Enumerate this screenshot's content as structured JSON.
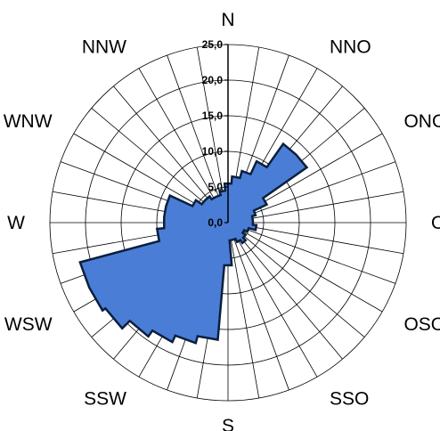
{
  "chart_data": {
    "type": "radar",
    "title": "",
    "directions": [
      "N",
      "NNO",
      "ONO",
      "O",
      "OSO",
      "SSO",
      "S",
      "SSW",
      "WSW",
      "W",
      "WNW",
      "NNW"
    ],
    "radial_ticks": [
      "0,0",
      "5,0",
      "10,0",
      "15,0",
      "20,0",
      "25,0"
    ],
    "rlim": [
      0,
      25
    ],
    "angular_bins": 36,
    "grid": true,
    "values": [
      5.5,
      6.5,
      7.5,
      9.5,
      13.5,
      13.5,
      6.0,
      4.0,
      3.5,
      3.5,
      4.0,
      3.0,
      2.5,
      3.0,
      3.5,
      3.0,
      2.5,
      2.5,
      6.0,
      16.5,
      17.5,
      18.5,
      19.5,
      21.0,
      21.5,
      21.5,
      10.0,
      9.0,
      9.0,
      9.0,
      5.5,
      4.5,
      4.5,
      4.0,
      4.0,
      4.5
    ],
    "colors": {
      "fill": "#4A7DD6",
      "stroke": "#0B1F3D",
      "grid": "#000000",
      "axis": "#000000"
    }
  }
}
